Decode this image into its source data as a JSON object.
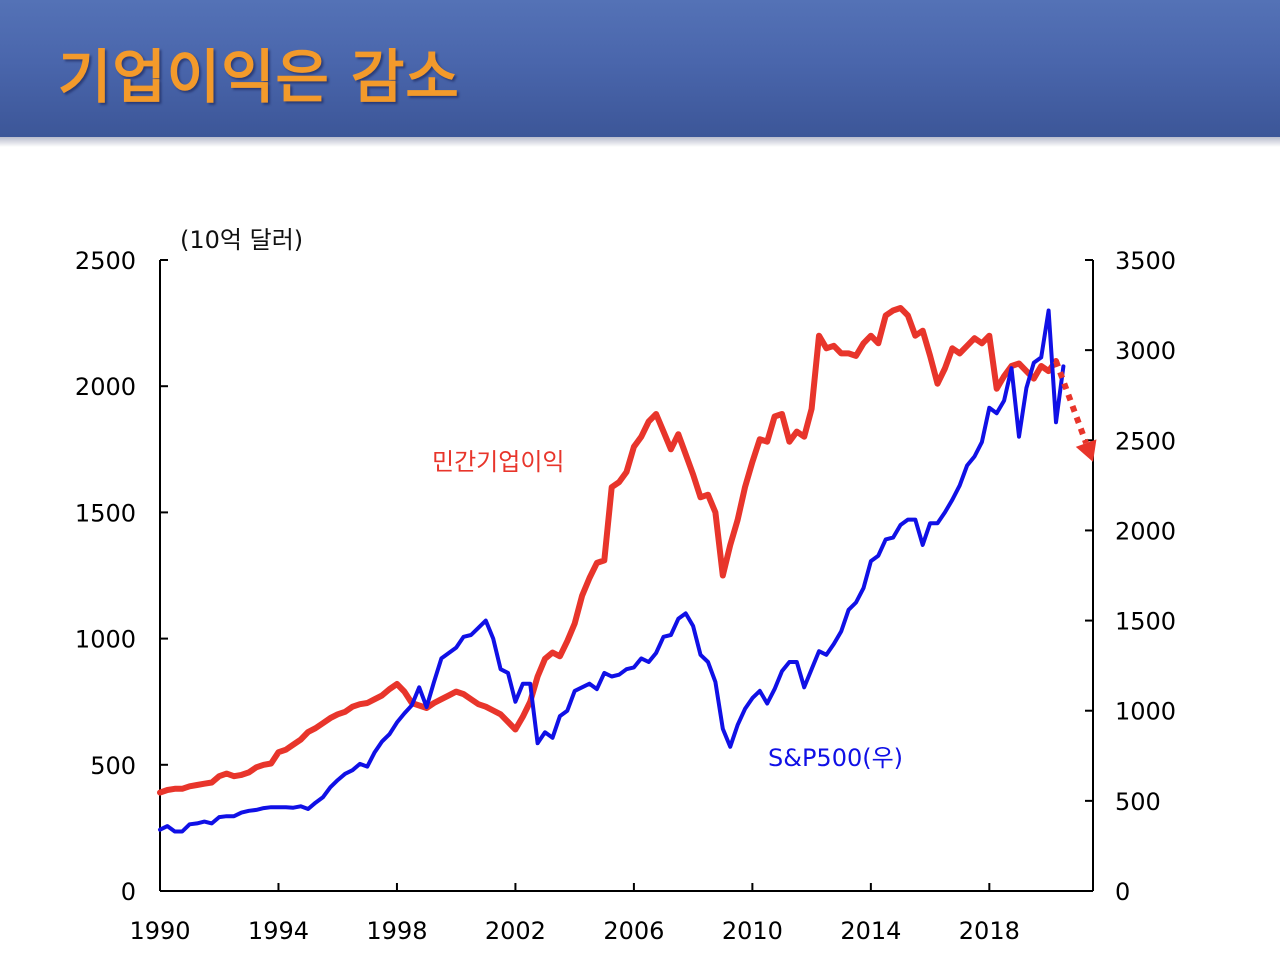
{
  "slide": {
    "title": "기업이익은 감소"
  },
  "chart_data": {
    "type": "line",
    "title": "",
    "left_axis": {
      "unit_label": "(10억 달러)",
      "range": [
        0,
        2500
      ],
      "ticks": [
        0,
        500,
        1000,
        1500,
        2000,
        2500
      ],
      "tick_labels": [
        "0",
        "500",
        "1000",
        "1500",
        "2000",
        "2500"
      ]
    },
    "right_axis": {
      "range": [
        0,
        3500
      ],
      "ticks": [
        0,
        500,
        1000,
        1500,
        2000,
        2500,
        3000,
        3500
      ],
      "tick_labels": [
        "0",
        "500",
        "1000",
        "1500",
        "2000",
        "2500",
        "3000",
        "3500"
      ]
    },
    "x_axis": {
      "range": [
        1990,
        2021.5
      ],
      "ticks": [
        1990,
        1994,
        1998,
        2002,
        2006,
        2010,
        2014,
        2018
      ],
      "tick_labels": [
        "1990",
        "1994",
        "1998",
        "2002",
        "2006",
        "2010",
        "2014",
        "2018"
      ]
    },
    "grid": false,
    "colors": {
      "profits": "#e8352b",
      "sp500": "#1010e6"
    },
    "series": [
      {
        "name": "민간기업이익",
        "axis": "left",
        "color": "#e8352b",
        "points": [
          [
            1990.0,
            390
          ],
          [
            1990.25,
            400
          ],
          [
            1990.5,
            405
          ],
          [
            1990.75,
            405
          ],
          [
            1991.0,
            415
          ],
          [
            1991.25,
            420
          ],
          [
            1991.5,
            425
          ],
          [
            1991.75,
            430
          ],
          [
            1992.0,
            455
          ],
          [
            1992.25,
            465
          ],
          [
            1992.5,
            455
          ],
          [
            1992.75,
            460
          ],
          [
            1993.0,
            470
          ],
          [
            1993.25,
            490
          ],
          [
            1993.5,
            500
          ],
          [
            1993.75,
            505
          ],
          [
            1994.0,
            550
          ],
          [
            1994.25,
            560
          ],
          [
            1994.5,
            580
          ],
          [
            1994.75,
            600
          ],
          [
            1995.0,
            630
          ],
          [
            1995.25,
            645
          ],
          [
            1995.5,
            665
          ],
          [
            1995.75,
            685
          ],
          [
            1996.0,
            700
          ],
          [
            1996.25,
            710
          ],
          [
            1996.5,
            730
          ],
          [
            1996.75,
            740
          ],
          [
            1997.0,
            745
          ],
          [
            1997.25,
            760
          ],
          [
            1997.5,
            775
          ],
          [
            1997.75,
            800
          ],
          [
            1998.0,
            820
          ],
          [
            1998.25,
            790
          ],
          [
            1998.5,
            745
          ],
          [
            1998.75,
            735
          ],
          [
            1999.0,
            725
          ],
          [
            1999.25,
            745
          ],
          [
            1999.5,
            760
          ],
          [
            1999.75,
            775
          ],
          [
            2000.0,
            790
          ],
          [
            2000.25,
            780
          ],
          [
            2000.5,
            760
          ],
          [
            2000.75,
            740
          ],
          [
            2001.0,
            730
          ],
          [
            2001.25,
            715
          ],
          [
            2001.5,
            700
          ],
          [
            2001.75,
            670
          ],
          [
            2002.0,
            640
          ],
          [
            2002.25,
            690
          ],
          [
            2002.5,
            750
          ],
          [
            2002.75,
            850
          ],
          [
            2003.0,
            920
          ],
          [
            2003.25,
            945
          ],
          [
            2003.5,
            930
          ],
          [
            2003.75,
            990
          ],
          [
            2004.0,
            1060
          ],
          [
            2004.25,
            1170
          ],
          [
            2004.5,
            1240
          ],
          [
            2004.75,
            1300
          ],
          [
            2005.0,
            1310
          ],
          [
            2005.25,
            1600
          ],
          [
            2005.5,
            1620
          ],
          [
            2005.75,
            1660
          ],
          [
            2006.0,
            1760
          ],
          [
            2006.25,
            1800
          ],
          [
            2006.5,
            1860
          ],
          [
            2006.75,
            1890
          ],
          [
            2007.0,
            1820
          ],
          [
            2007.25,
            1750
          ],
          [
            2007.5,
            1810
          ],
          [
            2007.75,
            1730
          ],
          [
            2008.0,
            1650
          ],
          [
            2008.25,
            1560
          ],
          [
            2008.5,
            1570
          ],
          [
            2008.75,
            1500
          ],
          [
            2009.0,
            1250
          ],
          [
            2009.25,
            1370
          ],
          [
            2009.5,
            1470
          ],
          [
            2009.75,
            1600
          ],
          [
            2010.0,
            1700
          ],
          [
            2010.25,
            1790
          ],
          [
            2010.5,
            1780
          ],
          [
            2010.75,
            1880
          ],
          [
            2011.0,
            1890
          ],
          [
            2011.25,
            1780
          ],
          [
            2011.5,
            1820
          ],
          [
            2011.75,
            1800
          ],
          [
            2012.0,
            1910
          ],
          [
            2012.25,
            2200
          ],
          [
            2012.5,
            2150
          ],
          [
            2012.75,
            2160
          ],
          [
            2013.0,
            2130
          ],
          [
            2013.25,
            2130
          ],
          [
            2013.5,
            2120
          ],
          [
            2013.75,
            2170
          ],
          [
            2014.0,
            2200
          ],
          [
            2014.25,
            2170
          ],
          [
            2014.5,
            2280
          ],
          [
            2014.75,
            2300
          ],
          [
            2015.0,
            2310
          ],
          [
            2015.25,
            2280
          ],
          [
            2015.5,
            2200
          ],
          [
            2015.75,
            2220
          ],
          [
            2016.0,
            2120
          ],
          [
            2016.25,
            2010
          ],
          [
            2016.5,
            2070
          ],
          [
            2016.75,
            2150
          ],
          [
            2017.0,
            2130
          ],
          [
            2017.25,
            2160
          ],
          [
            2017.5,
            2190
          ],
          [
            2017.75,
            2170
          ],
          [
            2018.0,
            2200
          ],
          [
            2018.25,
            1990
          ],
          [
            2018.5,
            2040
          ],
          [
            2018.75,
            2080
          ],
          [
            2019.0,
            2090
          ],
          [
            2019.25,
            2060
          ],
          [
            2019.5,
            2030
          ],
          [
            2019.75,
            2080
          ],
          [
            2020.0,
            2060
          ],
          [
            2020.25,
            2100
          ]
        ]
      },
      {
        "name": "S&P500(우)",
        "axis": "right",
        "color": "#1010e6",
        "points": [
          [
            1990.0,
            340
          ],
          [
            1990.25,
            360
          ],
          [
            1990.5,
            330
          ],
          [
            1990.75,
            330
          ],
          [
            1991.0,
            370
          ],
          [
            1991.25,
            375
          ],
          [
            1991.5,
            385
          ],
          [
            1991.75,
            375
          ],
          [
            1992.0,
            410
          ],
          [
            1992.25,
            415
          ],
          [
            1992.5,
            415
          ],
          [
            1992.75,
            435
          ],
          [
            1993.0,
            445
          ],
          [
            1993.25,
            450
          ],
          [
            1993.5,
            460
          ],
          [
            1993.75,
            465
          ],
          [
            1994.0,
            465
          ],
          [
            1994.25,
            465
          ],
          [
            1994.5,
            462
          ],
          [
            1994.75,
            470
          ],
          [
            1995.0,
            455
          ],
          [
            1995.25,
            490
          ],
          [
            1995.5,
            520
          ],
          [
            1995.75,
            575
          ],
          [
            1996.0,
            615
          ],
          [
            1996.25,
            650
          ],
          [
            1996.5,
            670
          ],
          [
            1996.75,
            705
          ],
          [
            1997.0,
            690
          ],
          [
            1997.25,
            770
          ],
          [
            1997.5,
            830
          ],
          [
            1997.75,
            870
          ],
          [
            1998.0,
            935
          ],
          [
            1998.25,
            985
          ],
          [
            1998.5,
            1030
          ],
          [
            1998.75,
            1130
          ],
          [
            1999.0,
            1020
          ],
          [
            1999.25,
            1160
          ],
          [
            1999.5,
            1290
          ],
          [
            1999.75,
            1320
          ],
          [
            2000.0,
            1350
          ],
          [
            2000.25,
            1410
          ],
          [
            2000.5,
            1420
          ],
          [
            2000.75,
            1460
          ],
          [
            2001.0,
            1500
          ],
          [
            2001.25,
            1400
          ],
          [
            2001.5,
            1230
          ],
          [
            2001.75,
            1210
          ],
          [
            2002.0,
            1050
          ],
          [
            2002.25,
            1150
          ],
          [
            2002.5,
            1150
          ],
          [
            2002.75,
            820
          ],
          [
            2003.0,
            880
          ],
          [
            2003.25,
            850
          ],
          [
            2003.5,
            970
          ],
          [
            2003.75,
            1000
          ],
          [
            2004.0,
            1110
          ],
          [
            2004.25,
            1130
          ],
          [
            2004.5,
            1150
          ],
          [
            2004.75,
            1120
          ],
          [
            2005.0,
            1210
          ],
          [
            2005.25,
            1190
          ],
          [
            2005.5,
            1200
          ],
          [
            2005.75,
            1230
          ],
          [
            2006.0,
            1240
          ],
          [
            2006.25,
            1290
          ],
          [
            2006.5,
            1270
          ],
          [
            2006.75,
            1320
          ],
          [
            2007.0,
            1410
          ],
          [
            2007.25,
            1420
          ],
          [
            2007.5,
            1510
          ],
          [
            2007.75,
            1540
          ],
          [
            2008.0,
            1470
          ],
          [
            2008.25,
            1310
          ],
          [
            2008.5,
            1270
          ],
          [
            2008.75,
            1160
          ],
          [
            2009.0,
            900
          ],
          [
            2009.25,
            800
          ],
          [
            2009.5,
            920
          ],
          [
            2009.75,
            1010
          ],
          [
            2010.0,
            1070
          ],
          [
            2010.25,
            1110
          ],
          [
            2010.5,
            1040
          ],
          [
            2010.75,
            1120
          ],
          [
            2011.0,
            1220
          ],
          [
            2011.25,
            1270
          ],
          [
            2011.5,
            1270
          ],
          [
            2011.75,
            1130
          ],
          [
            2012.0,
            1230
          ],
          [
            2012.25,
            1330
          ],
          [
            2012.5,
            1310
          ],
          [
            2012.75,
            1370
          ],
          [
            2013.0,
            1440
          ],
          [
            2013.25,
            1560
          ],
          [
            2013.5,
            1600
          ],
          [
            2013.75,
            1680
          ],
          [
            2014.0,
            1830
          ],
          [
            2014.25,
            1860
          ],
          [
            2014.5,
            1950
          ],
          [
            2014.75,
            1960
          ],
          [
            2015.0,
            2030
          ],
          [
            2015.25,
            2060
          ],
          [
            2015.5,
            2060
          ],
          [
            2015.75,
            1920
          ],
          [
            2016.0,
            2040
          ],
          [
            2016.25,
            2040
          ],
          [
            2016.5,
            2100
          ],
          [
            2016.75,
            2170
          ],
          [
            2017.0,
            2250
          ],
          [
            2017.25,
            2360
          ],
          [
            2017.5,
            2410
          ],
          [
            2017.75,
            2490
          ],
          [
            2018.0,
            2680
          ],
          [
            2018.25,
            2650
          ],
          [
            2018.5,
            2720
          ],
          [
            2018.75,
            2900
          ],
          [
            2019.0,
            2520
          ],
          [
            2019.25,
            2790
          ],
          [
            2019.5,
            2930
          ],
          [
            2019.75,
            2960
          ],
          [
            2020.0,
            3220
          ],
          [
            2020.25,
            2600
          ],
          [
            2020.5,
            2910
          ]
        ]
      }
    ],
    "forecast_arrow": {
      "color": "#e8352b",
      "style": "dotted",
      "from": [
        2020.25,
        2100
      ],
      "to": [
        2021.5,
        1700
      ]
    },
    "annotations": [
      {
        "text": "민간기업이익",
        "color": "#e8352b"
      },
      {
        "text": "S&P500(우)",
        "color": "#1010e6"
      }
    ]
  }
}
